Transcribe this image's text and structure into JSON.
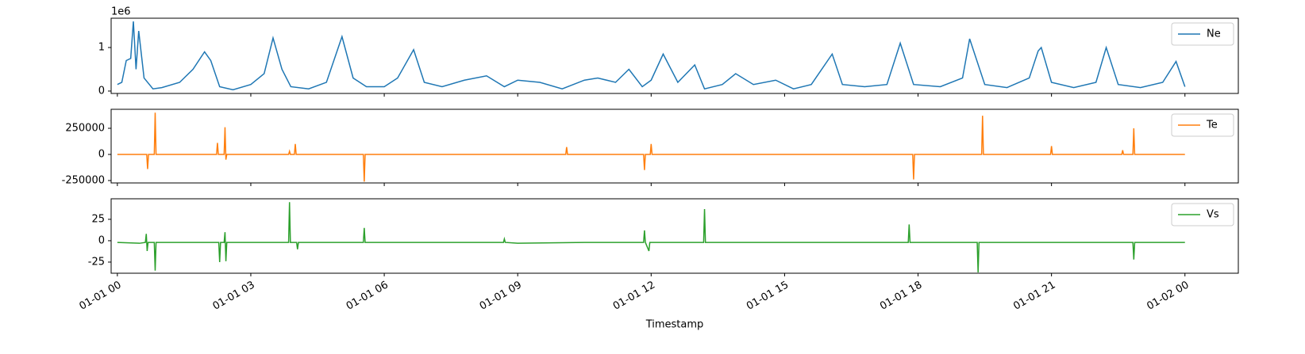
{
  "chart_data": [
    {
      "type": "line",
      "y_offset_label": "1e6",
      "legend": "upper right",
      "ylim": [
        -55000,
        1673000
      ],
      "yticks": [
        0,
        {
          "value": 1000000,
          "label": "1"
        }
      ],
      "series": [
        {
          "name": "Ne",
          "color": "#1f77b4",
          "x": [
            0,
            0.1,
            0.2,
            0.3,
            0.36,
            0.42,
            0.48,
            0.6,
            0.8,
            1.0,
            1.4,
            1.7,
            1.96,
            2.1,
            2.3,
            2.6,
            3.0,
            3.3,
            3.5,
            3.7,
            3.9,
            4.3,
            4.7,
            5.05,
            5.3,
            5.6,
            6.0,
            6.3,
            6.66,
            6.9,
            7.3,
            7.8,
            8.3,
            8.7,
            9.0,
            9.5,
            10.0,
            10.5,
            10.8,
            11.2,
            11.5,
            11.8,
            12.0,
            12.27,
            12.6,
            12.98,
            13.2,
            13.6,
            13.9,
            14.3,
            14.8,
            15.2,
            15.6,
            16.07,
            16.3,
            16.8,
            17.3,
            17.6,
            17.9,
            18.5,
            19.0,
            19.16,
            19.5,
            20.0,
            20.5,
            20.7,
            20.77,
            21.0,
            21.5,
            22.0,
            22.23,
            22.5,
            23.0,
            23.5,
            23.8,
            24.0
          ],
          "values": [
            150000,
            200000,
            700000,
            750000,
            1600000,
            500000,
            1380000,
            300000,
            50000,
            80000,
            200000,
            500000,
            900000,
            700000,
            100000,
            30000,
            150000,
            400000,
            1220000,
            500000,
            100000,
            50000,
            200000,
            1250000,
            300000,
            100000,
            100000,
            300000,
            950000,
            200000,
            100000,
            250000,
            350000,
            100000,
            250000,
            200000,
            50000,
            250000,
            300000,
            200000,
            500000,
            100000,
            250000,
            850000,
            200000,
            600000,
            50000,
            150000,
            400000,
            150000,
            250000,
            50000,
            150000,
            850000,
            150000,
            100000,
            150000,
            1100000,
            150000,
            100000,
            300000,
            1200000,
            150000,
            80000,
            300000,
            920000,
            1000000,
            200000,
            80000,
            200000,
            1000000,
            150000,
            80000,
            200000,
            680000,
            100000
          ]
        }
      ]
    },
    {
      "type": "line",
      "legend": "upper right",
      "ylim": [
        -273000,
        432000
      ],
      "yticks": [
        -250000,
        0,
        250000
      ],
      "series": [
        {
          "name": "Te",
          "color": "#ff7f0e",
          "x": [
            0,
            0.66,
            0.68,
            0.7,
            0.83,
            0.85,
            0.87,
            2.23,
            2.25,
            2.27,
            2.4,
            2.42,
            2.44,
            2.46,
            3.85,
            3.87,
            3.89,
            3.98,
            4.0,
            4.02,
            5.53,
            5.55,
            5.57,
            10.08,
            10.1,
            10.12,
            11.83,
            11.85,
            11.87,
            11.98,
            12.0,
            12.02,
            17.88,
            17.9,
            17.92,
            19.43,
            19.45,
            19.47,
            20.98,
            21.0,
            21.02,
            22.58,
            22.6,
            22.62,
            22.83,
            22.85,
            22.87,
            24
          ],
          "values": [
            0,
            0,
            -140000,
            0,
            0,
            400000,
            0,
            0,
            110000,
            0,
            0,
            260000,
            -50000,
            0,
            0,
            30000,
            0,
            0,
            100000,
            0,
            0,
            -260000,
            0,
            0,
            70000,
            0,
            0,
            -150000,
            0,
            0,
            100000,
            0,
            0,
            -240000,
            0,
            0,
            370000,
            0,
            0,
            80000,
            0,
            0,
            40000,
            0,
            0,
            250000,
            0,
            0
          ]
        }
      ]
    },
    {
      "type": "line",
      "legend": "upper right",
      "xlabel": "Timestamp",
      "xlim": [
        -0.14,
        25.2
      ],
      "xticks": [
        {
          "value": 0,
          "label": "01-01 00"
        },
        {
          "value": 3,
          "label": "01-01 03"
        },
        {
          "value": 6,
          "label": "01-01 06"
        },
        {
          "value": 9,
          "label": "01-01 09"
        },
        {
          "value": 12,
          "label": "01-01 12"
        },
        {
          "value": 15,
          "label": "01-01 15"
        },
        {
          "value": 18,
          "label": "01-01 18"
        },
        {
          "value": 21,
          "label": "01-01 21"
        },
        {
          "value": 24,
          "label": "01-02 00"
        }
      ],
      "ylim": [
        -38,
        49
      ],
      "yticks": [
        -25,
        0,
        25
      ],
      "series": [
        {
          "name": "Vs",
          "color": "#2ca02c",
          "x": [
            0,
            0.5,
            0.63,
            0.65,
            0.67,
            0.69,
            0.83,
            0.85,
            0.87,
            1.5,
            2.28,
            2.3,
            2.32,
            2.4,
            2.42,
            2.44,
            2.46,
            3,
            3.85,
            3.87,
            3.89,
            4.03,
            4.05,
            4.07,
            5.53,
            5.55,
            5.57,
            7,
            8.68,
            8.7,
            8.72,
            9,
            10.5,
            11.83,
            11.85,
            11.87,
            11.95,
            11.97,
            13.18,
            13.2,
            13.22,
            15,
            17.78,
            17.8,
            17.82,
            19.33,
            19.35,
            19.37,
            21,
            22.83,
            22.85,
            22.87,
            24
          ],
          "values": [
            -2,
            -3,
            -2,
            8,
            -12,
            -2,
            -2,
            -35,
            -2,
            -2,
            -2,
            -25,
            -2,
            -2,
            10,
            -24,
            -2,
            -2,
            -2,
            45,
            -2,
            -2,
            -10,
            -2,
            -2,
            15,
            -2,
            -2,
            -2,
            2,
            -2,
            -3,
            -2,
            -2,
            12,
            -2,
            -12,
            -2,
            -2,
            37,
            -2,
            -2,
            -2,
            19,
            -2,
            -2,
            -37,
            -2,
            -2,
            -2,
            -22,
            -2,
            -2
          ]
        }
      ]
    }
  ]
}
